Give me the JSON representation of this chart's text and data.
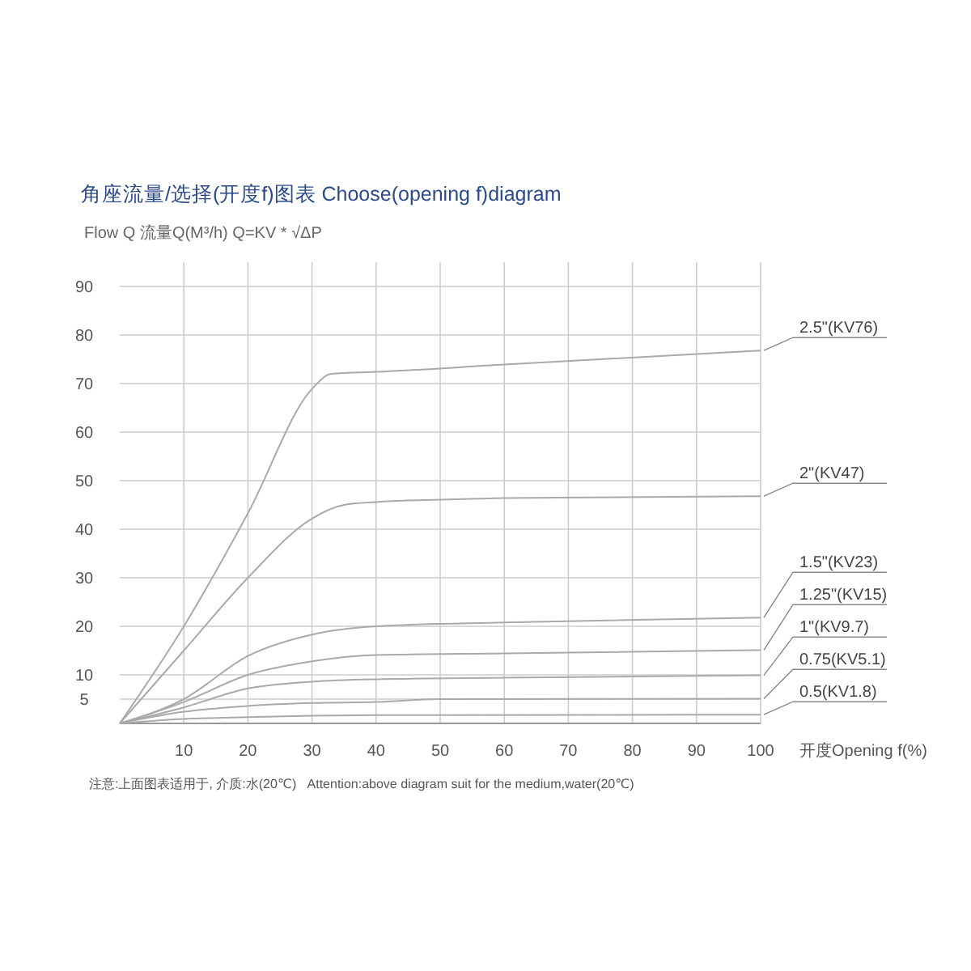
{
  "chart_data": {
    "type": "line",
    "title": "角座流量/选择(开度f)图表 Choose(opening f)diagram",
    "ylabel": "Flow Q 流量Q(M³/h) Q=KV * √ΔP",
    "xlabel": "开度Opening f(%)",
    "annotations": [
      "注意:上面图表适用于, 介质:水(20℃)   Attention:above diagram suit for the medium,water(20℃)"
    ],
    "xlim": [
      0,
      100
    ],
    "xticks": [
      10,
      20,
      30,
      40,
      50,
      60,
      70,
      80,
      90,
      100
    ],
    "ylim": [
      0,
      95
    ],
    "yticks": [
      5,
      10,
      20,
      30,
      40,
      50,
      60,
      70,
      80,
      90
    ],
    "grid": true,
    "marker": "none",
    "line_style": "solid",
    "series": [
      {
        "name": "2.5\"(KV76)",
        "color": "#aaaaaa",
        "x": [
          0,
          10,
          20,
          30,
          33,
          40,
          60,
          100
        ],
        "values": [
          0,
          20,
          43.3,
          68.9,
          72,
          72.4,
          73.9,
          76.8
        ]
      },
      {
        "name": "2\"(KV47)",
        "color": "#aaaaaa",
        "x": [
          0,
          10,
          20,
          30,
          35,
          40,
          50,
          60,
          100
        ],
        "values": [
          0,
          15,
          30,
          42.2,
          45,
          45.6,
          46.1,
          46.4,
          46.8
        ]
      },
      {
        "name": "1.5\"(KV23)",
        "color": "#aaaaaa",
        "x": [
          0,
          10,
          20,
          30,
          40,
          60,
          100
        ],
        "values": [
          0,
          5,
          13.9,
          18.3,
          20,
          20.8,
          21.8
        ]
      },
      {
        "name": "1.25\"(KV15)",
        "color": "#aaaaaa",
        "x": [
          0,
          10,
          20,
          30,
          40,
          60,
          100
        ],
        "values": [
          0,
          4.4,
          10,
          12.8,
          14.1,
          14.4,
          15.1
        ]
      },
      {
        "name": "1\"(KV9.7)",
        "color": "#aaaaaa",
        "x": [
          0,
          10,
          20,
          30,
          40,
          60,
          100
        ],
        "values": [
          0,
          3.3,
          7.2,
          8.6,
          9.1,
          9.4,
          9.9
        ]
      },
      {
        "name": "0.75(KV5.1)",
        "color": "#aaaaaa",
        "x": [
          0,
          10,
          20,
          30,
          40,
          50,
          100
        ],
        "values": [
          0,
          2.4,
          3.6,
          4.2,
          4.4,
          5,
          5.1
        ]
      },
      {
        "name": "0.5(KV1.8)",
        "color": "#aaaaaa",
        "x": [
          0,
          10,
          20,
          30,
          40,
          100
        ],
        "values": [
          0,
          0.9,
          1.3,
          1.6,
          1.7,
          1.8
        ]
      }
    ]
  }
}
